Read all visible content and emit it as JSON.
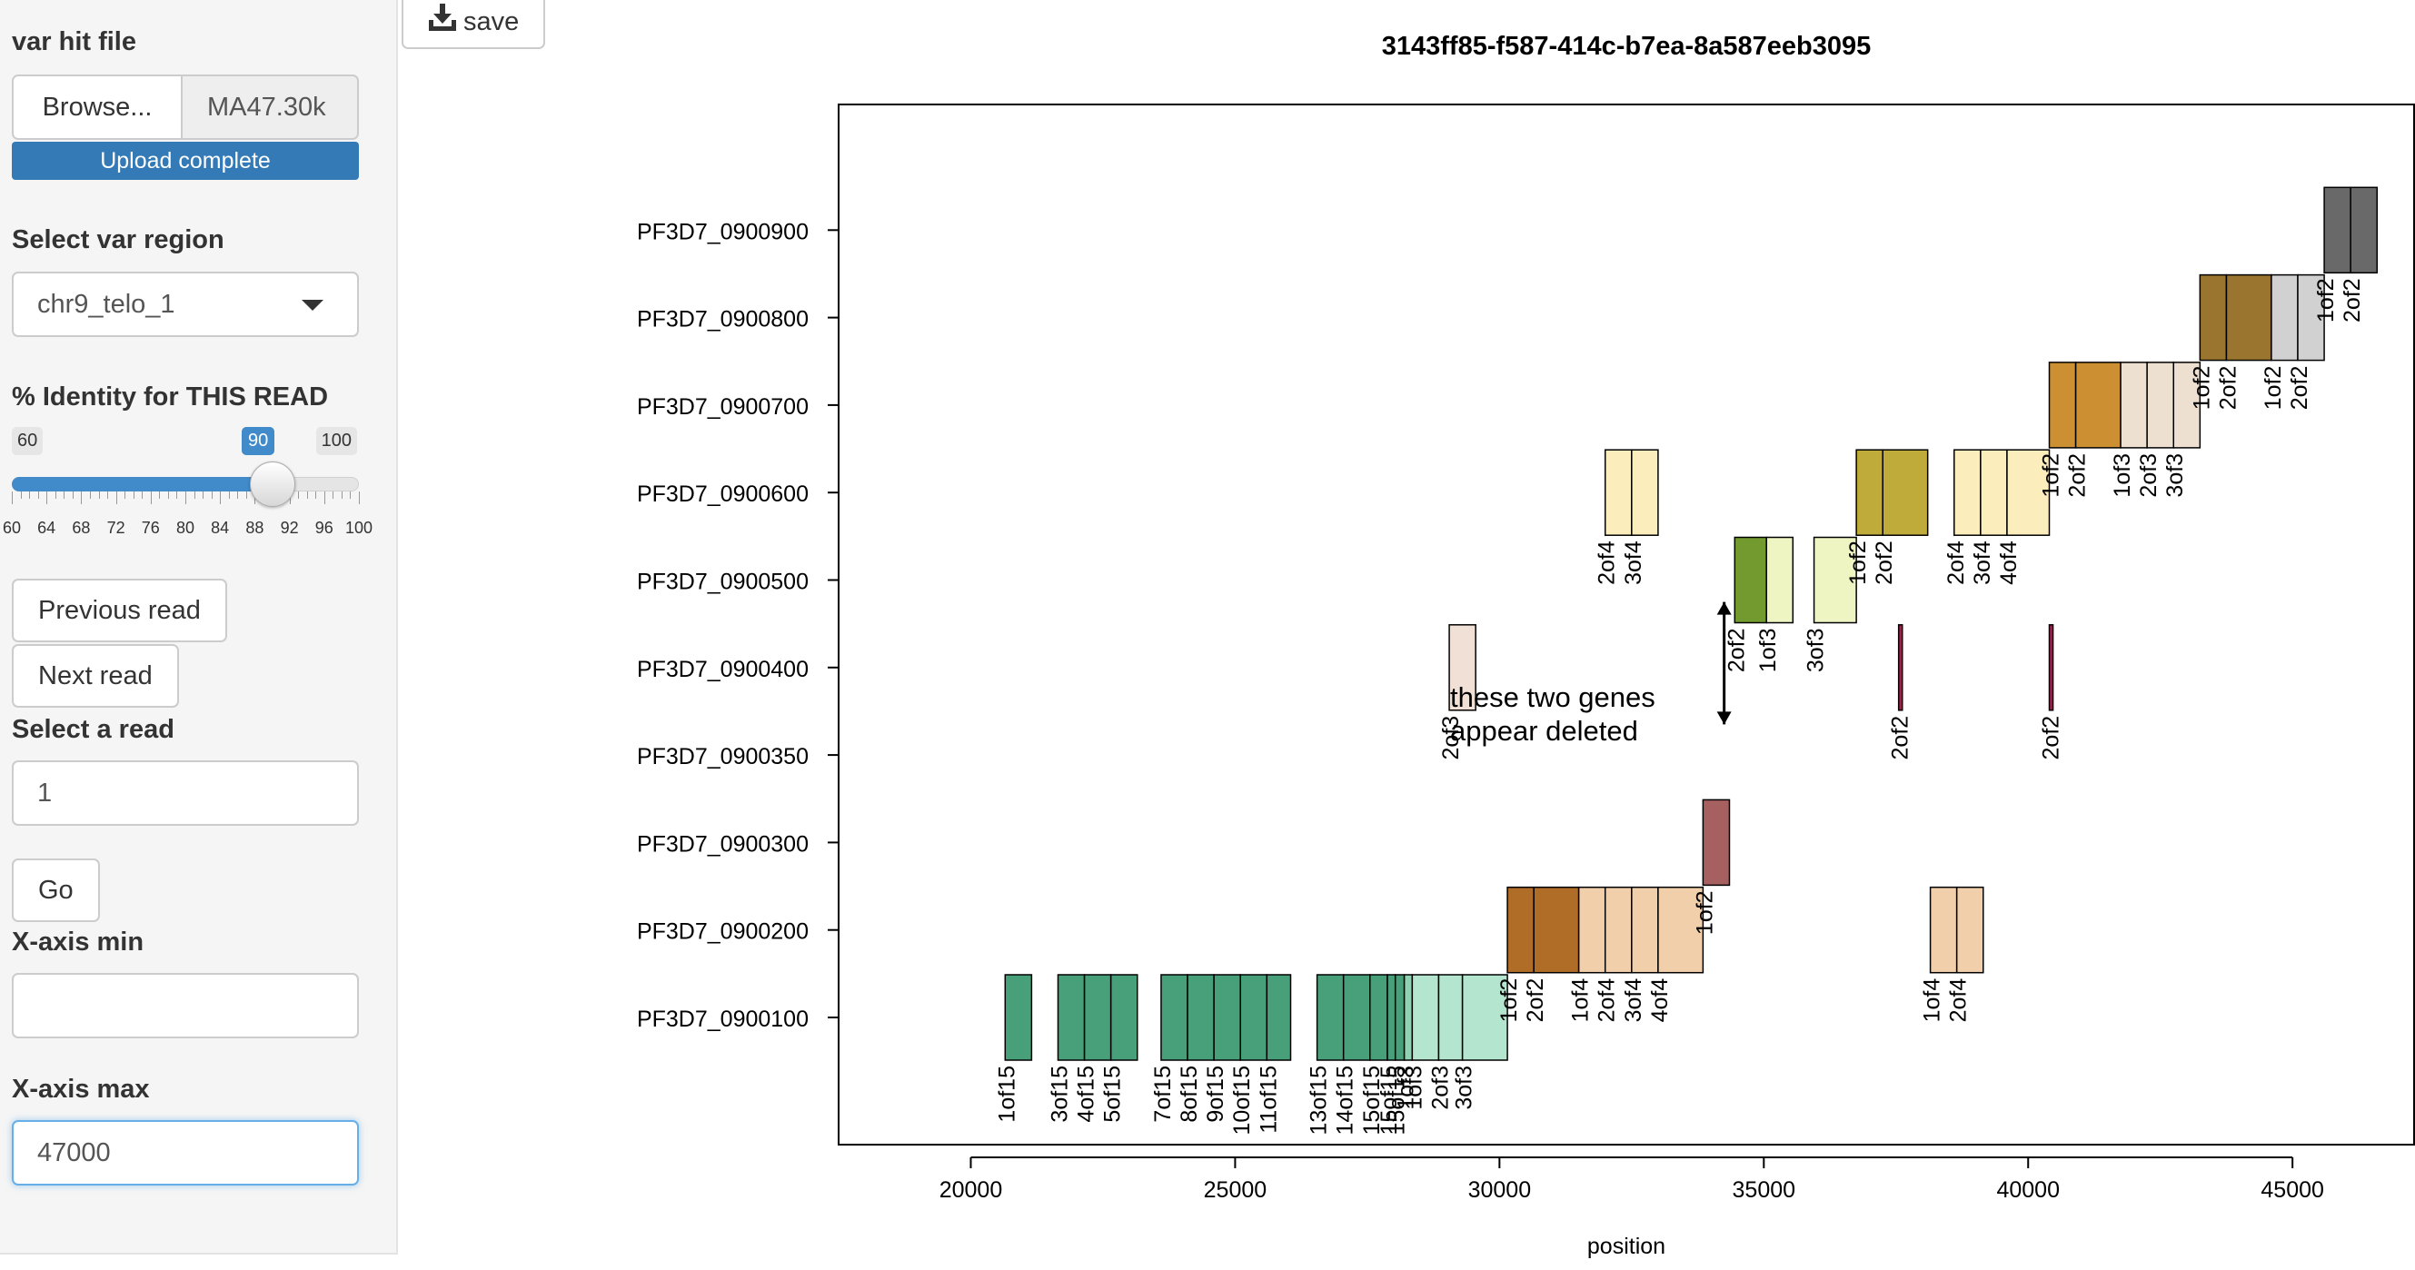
{
  "sidebar": {
    "var_hit_file_label": "var hit file",
    "browse_label": "Browse...",
    "file_name": "MA47.30k",
    "upload_status": "Upload complete",
    "region_label": "Select var region",
    "region_value": "chr9_telo_1",
    "identity_label": "% Identity for THIS READ",
    "slider": {
      "min_label": "60",
      "max_label": "100",
      "value_label": "90",
      "min": 60,
      "max": 100,
      "value": 90,
      "tick_labels": [
        "60",
        "64",
        "68",
        "72",
        "76",
        "80",
        "84",
        "88",
        "92",
        "96",
        "100"
      ]
    },
    "previous_read_label": "Previous read",
    "next_read_label": "Next read",
    "select_read_label": "Select a read",
    "read_value": "1",
    "go_label": "Go",
    "xmin_label": "X-axis min",
    "xmin_value": "",
    "xmax_label": "X-axis max",
    "xmax_value": "47000"
  },
  "toolbar": {
    "save_label": "save",
    "save_icon": "download-icon"
  },
  "chart_data": {
    "type": "bar",
    "title": "3143ff85-f587-414c-b7ea-8a587eeb3095",
    "xlabel": "position",
    "ylabel": "",
    "xlim": [
      17500,
      47300
    ],
    "x_ticks": [
      20000,
      25000,
      30000,
      35000,
      40000,
      45000
    ],
    "categories": [
      "PF3D7_0900100",
      "PF3D7_0900200",
      "PF3D7_0900300",
      "PF3D7_0900350",
      "PF3D7_0900400",
      "PF3D7_0900500",
      "PF3D7_0900600",
      "PF3D7_0900700",
      "PF3D7_0900800",
      "PF3D7_0900900"
    ],
    "annotation": {
      "text": [
        "these two genes",
        "appear deleted"
      ],
      "arrow_x": 34250,
      "arrow_from_row": 3.35,
      "arrow_to_row": 4.75
    },
    "segments": [
      {
        "row": 0,
        "start": 20650,
        "end": 21150,
        "label": "1of15",
        "color": "#48a07a"
      },
      {
        "row": 0,
        "start": 21650,
        "end": 22150,
        "label": "3of15",
        "color": "#48a07a"
      },
      {
        "row": 0,
        "start": 22150,
        "end": 22650,
        "label": "4of15",
        "color": "#48a07a"
      },
      {
        "row": 0,
        "start": 22650,
        "end": 23150,
        "label": "5of15",
        "color": "#48a07a"
      },
      {
        "row": 0,
        "start": 23600,
        "end": 24100,
        "label": "7of15",
        "color": "#48a07a"
      },
      {
        "row": 0,
        "start": 24100,
        "end": 24600,
        "label": "8of15",
        "color": "#48a07a"
      },
      {
        "row": 0,
        "start": 24600,
        "end": 25100,
        "label": "9of15",
        "color": "#48a07a"
      },
      {
        "row": 0,
        "start": 25100,
        "end": 25600,
        "label": "10of15",
        "color": "#48a07a"
      },
      {
        "row": 0,
        "start": 25600,
        "end": 26050,
        "label": "11of15",
        "color": "#48a07a"
      },
      {
        "row": 0,
        "start": 26550,
        "end": 27050,
        "label": "13of15",
        "color": "#48a07a"
      },
      {
        "row": 0,
        "start": 27050,
        "end": 27550,
        "label": "14of15",
        "color": "#48a07a"
      },
      {
        "row": 0,
        "start": 27550,
        "end": 27880,
        "label": "15of15",
        "color": "#48a07a"
      },
      {
        "row": 0,
        "start": 27880,
        "end": 28030,
        "label": "15of15",
        "color": "#48a07a"
      },
      {
        "row": 0,
        "start": 28030,
        "end": 28200,
        "label": "15of15",
        "color": "#48a07a"
      },
      {
        "row": 0,
        "start": 28200,
        "end": 28350,
        "label": "1of3",
        "color": "#8fd1b0"
      },
      {
        "row": 0,
        "start": 28350,
        "end": 28850,
        "label": "1of3",
        "color": "#b3e5cf"
      },
      {
        "row": 0,
        "start": 28850,
        "end": 29300,
        "label": "2of3",
        "color": "#b3e5cf"
      },
      {
        "row": 0,
        "start": 29300,
        "end": 30150,
        "label": "3of3",
        "color": "#b3e5cf"
      },
      {
        "row": 1,
        "start": 30150,
        "end": 30650,
        "label": "1of2",
        "color": "#b06d28"
      },
      {
        "row": 1,
        "start": 30650,
        "end": 31500,
        "label": "2of2",
        "color": "#b06d28"
      },
      {
        "row": 1,
        "start": 31500,
        "end": 32000,
        "label": "1of4",
        "color": "#f2cfab"
      },
      {
        "row": 1,
        "start": 32000,
        "end": 32500,
        "label": "2of4",
        "color": "#f2cfab"
      },
      {
        "row": 1,
        "start": 32500,
        "end": 33000,
        "label": "3of4",
        "color": "#f2cfab"
      },
      {
        "row": 1,
        "start": 33000,
        "end": 33850,
        "label": "4of4",
        "color": "#f2cfab"
      },
      {
        "row": 1,
        "start": 38150,
        "end": 38650,
        "label": "1of4",
        "color": "#f2cfab"
      },
      {
        "row": 1,
        "start": 38650,
        "end": 39150,
        "label": "2of4",
        "color": "#f2cfab"
      },
      {
        "row": 2,
        "start": 33850,
        "end": 34350,
        "label": "1of2",
        "color": "#a66060"
      },
      {
        "row": 4,
        "start": 29050,
        "end": 29550,
        "label": "2of3",
        "color": "#f0e0d6"
      },
      {
        "row": 4,
        "start": 37550,
        "end": 37620,
        "label": "2of2",
        "color": "#a02050"
      },
      {
        "row": 4,
        "start": 40400,
        "end": 40470,
        "label": "2of2",
        "color": "#a02050"
      },
      {
        "row": 5,
        "start": 34450,
        "end": 35050,
        "label": "2of2",
        "color": "#739a2e"
      },
      {
        "row": 5,
        "start": 35050,
        "end": 35550,
        "label": "1of3",
        "color": "#eff5c2"
      },
      {
        "row": 5,
        "start": 35950,
        "end": 36750,
        "label": "3of3",
        "color": "#eff5c2"
      },
      {
        "row": 6,
        "start": 32000,
        "end": 32500,
        "label": "2of4",
        "color": "#fceebc"
      },
      {
        "row": 6,
        "start": 32500,
        "end": 33000,
        "label": "3of4",
        "color": "#fceebc"
      },
      {
        "row": 6,
        "start": 36750,
        "end": 37250,
        "label": "1of2",
        "color": "#bfab3a"
      },
      {
        "row": 6,
        "start": 37250,
        "end": 38100,
        "label": "2of2",
        "color": "#bfab3a"
      },
      {
        "row": 6,
        "start": 38600,
        "end": 39100,
        "label": "2of4",
        "color": "#fceebc"
      },
      {
        "row": 6,
        "start": 39100,
        "end": 39600,
        "label": "3of4",
        "color": "#fceebc"
      },
      {
        "row": 6,
        "start": 39600,
        "end": 40400,
        "label": "4of4",
        "color": "#fceebc"
      },
      {
        "row": 7,
        "start": 40400,
        "end": 40900,
        "label": "1of2",
        "color": "#cc9032"
      },
      {
        "row": 7,
        "start": 40900,
        "end": 41750,
        "label": "2of2",
        "color": "#cc9032"
      },
      {
        "row": 7,
        "start": 41750,
        "end": 42250,
        "label": "1of3",
        "color": "#ede0d1"
      },
      {
        "row": 7,
        "start": 42250,
        "end": 42750,
        "label": "2of3",
        "color": "#ede0d1"
      },
      {
        "row": 7,
        "start": 42750,
        "end": 43250,
        "label": "3of3",
        "color": "#ede0d1"
      },
      {
        "row": 8,
        "start": 43250,
        "end": 43750,
        "label": "1of2",
        "color": "#9a7530"
      },
      {
        "row": 8,
        "start": 43750,
        "end": 44600,
        "label": "2of2",
        "color": "#9a7530"
      },
      {
        "row": 8,
        "start": 44600,
        "end": 45100,
        "label": "1of2",
        "color": "#d1d1d1"
      },
      {
        "row": 8,
        "start": 45100,
        "end": 45600,
        "label": "2of2",
        "color": "#d1d1d1"
      },
      {
        "row": 9,
        "start": 45600,
        "end": 46100,
        "label": "1of2",
        "color": "#696969"
      },
      {
        "row": 9,
        "start": 46100,
        "end": 46600,
        "label": "2of2",
        "color": "#696969"
      }
    ]
  }
}
